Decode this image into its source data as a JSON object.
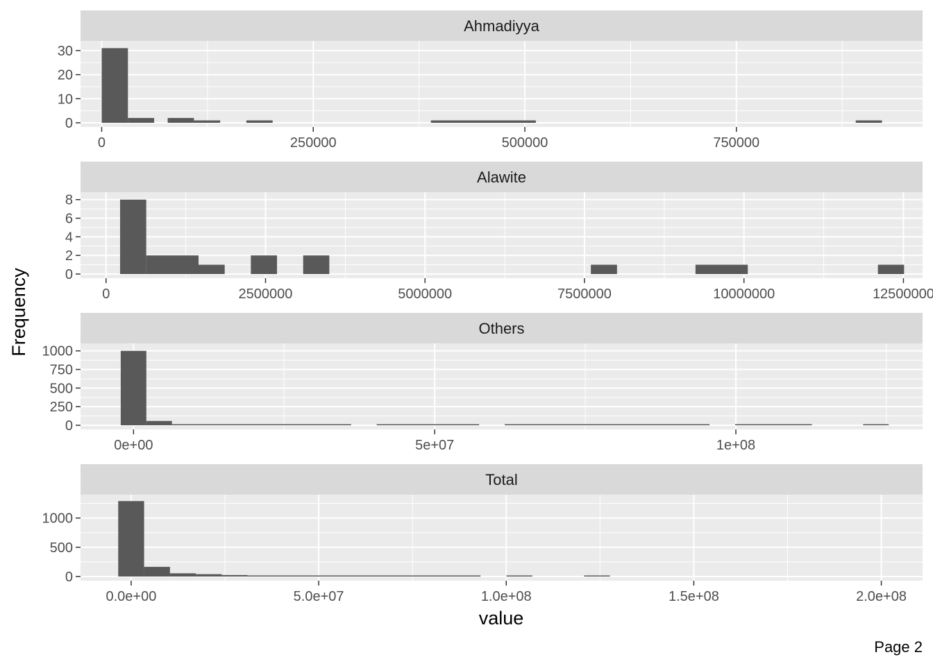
{
  "chart_data": {
    "type": "bar",
    "subtype": "histogram",
    "layout": "facet_wrap, single column, free scales",
    "xlabel": "value",
    "ylabel": "Frequency",
    "caption": "Page 2",
    "colors": {
      "bar": "#595959",
      "panel": "#ebebeb",
      "strip": "#d9d9d9",
      "grid": "#ffffff"
    },
    "grid": true,
    "panels": [
      {
        "title": "Ahmadiyya",
        "xlim": [
          -25000,
          970000
        ],
        "ylim": [
          0,
          34
        ],
        "xticks": [
          0,
          250000,
          500000,
          750000
        ],
        "xtick_labels": [
          "0",
          "250000",
          "500000",
          "750000"
        ],
        "yticks": [
          0,
          10,
          20,
          30
        ],
        "ytick_labels": [
          "0",
          "10",
          "20",
          "30"
        ],
        "bin_width": 31000,
        "bins": [
          {
            "x0": 0,
            "x1": 31000,
            "count": 31
          },
          {
            "x0": 31000,
            "x1": 62000,
            "count": 2
          },
          {
            "x0": 78000,
            "x1": 109000,
            "count": 2
          },
          {
            "x0": 109000,
            "x1": 140000,
            "count": 1
          },
          {
            "x0": 171000,
            "x1": 202000,
            "count": 1
          },
          {
            "x0": 389000,
            "x1": 513000,
            "count": 1
          },
          {
            "x0": 891000,
            "x1": 922000,
            "count": 1
          }
        ]
      },
      {
        "title": "Alawite",
        "xlim": [
          -400000,
          12800000
        ],
        "ylim": [
          0,
          8.8
        ],
        "xticks": [
          0,
          2500000,
          5000000,
          7500000,
          10000000,
          12500000
        ],
        "xtick_labels": [
          "0",
          "2500000",
          "5000000",
          "7500000",
          "10000000",
          "12500000"
        ],
        "yticks": [
          0,
          2,
          4,
          6,
          8
        ],
        "ytick_labels": [
          "0",
          "2",
          "4",
          "6",
          "8"
        ],
        "bin_width": 410000,
        "bins": [
          {
            "x0": 220000,
            "x1": 630000,
            "count": 8
          },
          {
            "x0": 630000,
            "x1": 1450000,
            "count": 2
          },
          {
            "x0": 1450000,
            "x1": 1860000,
            "count": 1
          },
          {
            "x0": 2270000,
            "x1": 2680000,
            "count": 2
          },
          {
            "x0": 3090000,
            "x1": 3500000,
            "count": 2
          },
          {
            "x0": 7600000,
            "x1": 8010000,
            "count": 1
          },
          {
            "x0": 9240000,
            "x1": 10060000,
            "count": 1
          },
          {
            "x0": 12100000,
            "x1": 12510000,
            "count": 1
          }
        ]
      },
      {
        "title": "Others",
        "xlim": [
          -8800000,
          131000000
        ],
        "ylim": [
          0,
          1100
        ],
        "xticks": [
          0,
          50000000,
          100000000
        ],
        "xtick_labels": [
          "0e+00",
          "5e+07",
          "1e+08"
        ],
        "yticks": [
          0,
          250,
          500,
          750,
          1000
        ],
        "ytick_labels": [
          "0",
          "250",
          "500",
          "750",
          "1000"
        ],
        "bin_width": 4250000,
        "bins": [
          {
            "x0": -2125000,
            "x1": 2125000,
            "count": 1000
          },
          {
            "x0": 2125000,
            "x1": 6375000,
            "count": 58
          },
          {
            "x0": 6375000,
            "x1": 10625000,
            "count": 12
          },
          {
            "x0": 10625000,
            "x1": 36125000,
            "count": 3
          },
          {
            "x0": 40375000,
            "x1": 57375000,
            "count": 2
          },
          {
            "x0": 61625000,
            "x1": 95625000,
            "count": 2
          },
          {
            "x0": 99875000,
            "x1": 112625000,
            "count": 2
          },
          {
            "x0": 121125000,
            "x1": 125375000,
            "count": 1
          }
        ]
      },
      {
        "title": "Total",
        "xlim": [
          -13500000,
          211000000
        ],
        "ylim": [
          0,
          1400
        ],
        "xticks": [
          0,
          50000000,
          100000000,
          150000000,
          200000000
        ],
        "xtick_labels": [
          "0.0e+00",
          "5.0e+07",
          "1.0e+08",
          "1.5e+08",
          "2.0e+08"
        ],
        "yticks": [
          0,
          500,
          1000
        ],
        "ytick_labels": [
          "0",
          "500",
          "1000"
        ],
        "bin_width": 6900000,
        "bins": [
          {
            "x0": -3450000,
            "x1": 3450000,
            "count": 1290
          },
          {
            "x0": 3450000,
            "x1": 10350000,
            "count": 165
          },
          {
            "x0": 10350000,
            "x1": 17250000,
            "count": 55
          },
          {
            "x0": 17250000,
            "x1": 24150000,
            "count": 40
          },
          {
            "x0": 24150000,
            "x1": 31050000,
            "count": 25
          },
          {
            "x0": 31050000,
            "x1": 93150000,
            "count": 3
          },
          {
            "x0": 100050000,
            "x1": 106950000,
            "count": 2
          },
          {
            "x0": 120750000,
            "x1": 127650000,
            "count": 2
          }
        ]
      }
    ]
  }
}
